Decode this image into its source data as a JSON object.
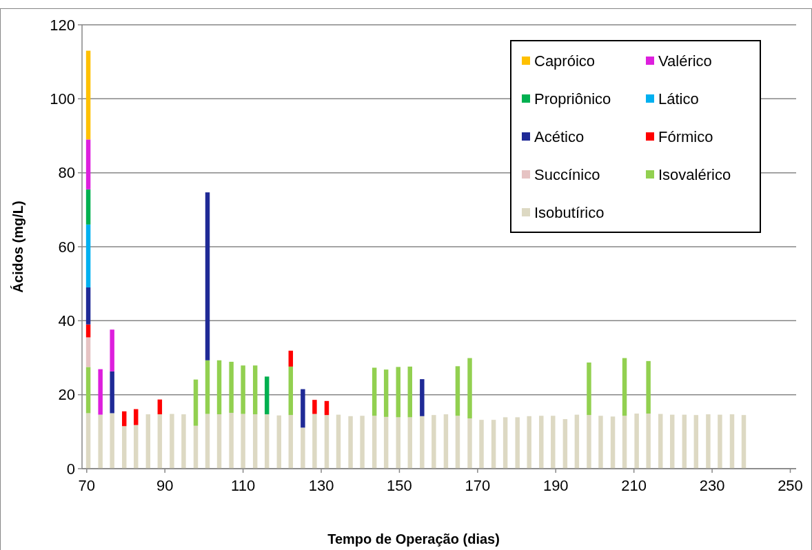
{
  "chart_data": {
    "type": "bar",
    "stacked": true,
    "xlabel": "Tempo de Operação (dias)",
    "ylabel": "Ácidos (mg/L)",
    "x": [
      70.4,
      73.5,
      76.5,
      79.6,
      82.6,
      85.7,
      88.7,
      91.8,
      94.8,
      97.9,
      100.9,
      103.9,
      107,
      110,
      113.1,
      116.1,
      119.2,
      122.2,
      125.3,
      128.3,
      131.4,
      134.4,
      137.5,
      140.5,
      143.6,
      146.6,
      149.7,
      152.7,
      155.8,
      158.8,
      161.9,
      164.9,
      168,
      171,
      174.1,
      177.1,
      180.2,
      183.2,
      186.3,
      189.3,
      192.4,
      195.4,
      198.5,
      201.5,
      204.6,
      207.6,
      210.7,
      213.7,
      216.8,
      219.8,
      222.9,
      225.9,
      229,
      232,
      235.1,
      238.1
    ],
    "xlim": [
      68.8,
      251.5
    ],
    "xticks": [
      70,
      90,
      110,
      130,
      150,
      170,
      190,
      210,
      230,
      250
    ],
    "ylim": [
      0,
      120
    ],
    "yticks": [
      0,
      20,
      40,
      60,
      80,
      100,
      120
    ],
    "grid": "y",
    "legend": "top right",
    "series": [
      {
        "name": "Isobutírico",
        "color": "#ddd9c3",
        "values": [
          15,
          14.6,
          15,
          11.5,
          11.8,
          14.7,
          14.7,
          14.8,
          14.7,
          11.6,
          14.8,
          14.7,
          15.1,
          14.8,
          14.7,
          14.7,
          14.4,
          14.5,
          11.1,
          14.8,
          14.5,
          14.6,
          14.2,
          14.3,
          14.3,
          14.0,
          13.9,
          13.9,
          14.2,
          14.5,
          14.7,
          14.3,
          13.6,
          13.2,
          13.2,
          13.9,
          13.9,
          14.2,
          14.3,
          14.3,
          13.4,
          14.6,
          14.5,
          14.3,
          14.1,
          14.3,
          14.9,
          14.9,
          14.8,
          14.6,
          14.6,
          14.5,
          14.7,
          14.6,
          14.7,
          14.5
        ]
      },
      {
        "name": "Isovalérico",
        "color": "#92d050",
        "values": [
          12.5,
          null,
          null,
          null,
          null,
          null,
          null,
          null,
          null,
          12.5,
          14.5,
          14.6,
          13.8,
          13.1,
          13.2,
          null,
          null,
          13.1,
          null,
          null,
          null,
          null,
          null,
          null,
          13,
          12.8,
          13.6,
          13.7,
          null,
          null,
          null,
          13.4,
          16.3,
          null,
          null,
          null,
          null,
          null,
          null,
          null,
          null,
          null,
          14.2,
          null,
          null,
          15.6,
          null,
          14.2,
          null,
          null,
          null,
          null,
          null,
          null,
          null,
          null
        ]
      },
      {
        "name": "Succínico",
        "color": "#e6c3c3",
        "values": [
          8,
          null,
          null,
          null,
          null,
          null,
          null,
          null,
          null,
          null,
          null,
          null,
          null,
          null,
          null,
          null,
          null,
          null,
          null,
          null,
          null,
          null,
          null,
          null,
          null,
          null,
          null,
          null,
          null,
          null,
          null,
          null,
          null,
          null,
          null,
          null,
          null,
          null,
          null,
          null,
          null,
          null,
          null,
          null,
          null,
          null,
          null,
          null,
          null,
          null,
          null,
          null,
          null,
          null,
          null,
          null
        ]
      },
      {
        "name": "Fórmico",
        "color": "#ff0000",
        "values": [
          3.5,
          null,
          null,
          4,
          4.3,
          null,
          4,
          null,
          null,
          null,
          null,
          null,
          null,
          null,
          null,
          null,
          null,
          4.3,
          null,
          3.8,
          3.8,
          null,
          null,
          null,
          null,
          null,
          null,
          null,
          null,
          null,
          null,
          null,
          null,
          null,
          null,
          null,
          null,
          null,
          null,
          null,
          null,
          null,
          null,
          null,
          null,
          null,
          null,
          null,
          null,
          null,
          null,
          null,
          null,
          null,
          null,
          null
        ]
      },
      {
        "name": "Acético",
        "color": "#1f2a96",
        "values": [
          10,
          null,
          11.3,
          null,
          null,
          null,
          null,
          null,
          null,
          null,
          45.4,
          null,
          null,
          null,
          null,
          null,
          null,
          null,
          10.4,
          null,
          null,
          null,
          null,
          null,
          null,
          null,
          null,
          null,
          10,
          null,
          null,
          null,
          null,
          null,
          null,
          null,
          null,
          null,
          null,
          null,
          null,
          null,
          null,
          null,
          null,
          null,
          null,
          null,
          null,
          null,
          null,
          null,
          null,
          null,
          null,
          null
        ]
      },
      {
        "name": "Lático",
        "color": "#00b0f0",
        "values": [
          17,
          null,
          null,
          null,
          null,
          null,
          null,
          null,
          null,
          null,
          null,
          null,
          null,
          null,
          null,
          null,
          null,
          null,
          null,
          null,
          null,
          null,
          null,
          null,
          null,
          null,
          null,
          null,
          null,
          null,
          null,
          null,
          null,
          null,
          null,
          null,
          null,
          null,
          null,
          null,
          null,
          null,
          null,
          null,
          null,
          null,
          null,
          null,
          null,
          null,
          null,
          null,
          null,
          null,
          null,
          null
        ]
      },
      {
        "name": "Propriônico",
        "color": "#00b050",
        "values": [
          9.5,
          null,
          null,
          null,
          null,
          null,
          null,
          null,
          null,
          null,
          null,
          null,
          null,
          null,
          null,
          10.2,
          null,
          null,
          null,
          null,
          null,
          null,
          null,
          null,
          null,
          null,
          null,
          null,
          null,
          null,
          null,
          null,
          null,
          null,
          null,
          null,
          null,
          null,
          null,
          null,
          null,
          null,
          null,
          null,
          null,
          null,
          null,
          null,
          null,
          null,
          null,
          null,
          null,
          null,
          null,
          null
        ]
      },
      {
        "name": "Valérico",
        "color": "#dd1fdd",
        "values": [
          13.5,
          12.3,
          11.3,
          null,
          null,
          null,
          null,
          null,
          null,
          null,
          null,
          null,
          null,
          null,
          null,
          null,
          null,
          null,
          null,
          null,
          null,
          null,
          null,
          null,
          null,
          null,
          null,
          null,
          null,
          null,
          null,
          null,
          null,
          null,
          null,
          null,
          null,
          null,
          null,
          null,
          null,
          null,
          null,
          null,
          null,
          null,
          null,
          null,
          null,
          null,
          null,
          null,
          null,
          null,
          null,
          null
        ]
      },
      {
        "name": "Capróico",
        "color": "#ffc000",
        "values": [
          24,
          null,
          null,
          null,
          null,
          null,
          null,
          null,
          null,
          null,
          null,
          null,
          null,
          null,
          null,
          null,
          null,
          null,
          null,
          null,
          null,
          null,
          null,
          null,
          null,
          null,
          null,
          null,
          null,
          null,
          null,
          null,
          null,
          null,
          null,
          null,
          null,
          null,
          null,
          null,
          null,
          null,
          null,
          null,
          null,
          null,
          null,
          null,
          null,
          null,
          null,
          null,
          null,
          null,
          null,
          null
        ]
      }
    ]
  }
}
